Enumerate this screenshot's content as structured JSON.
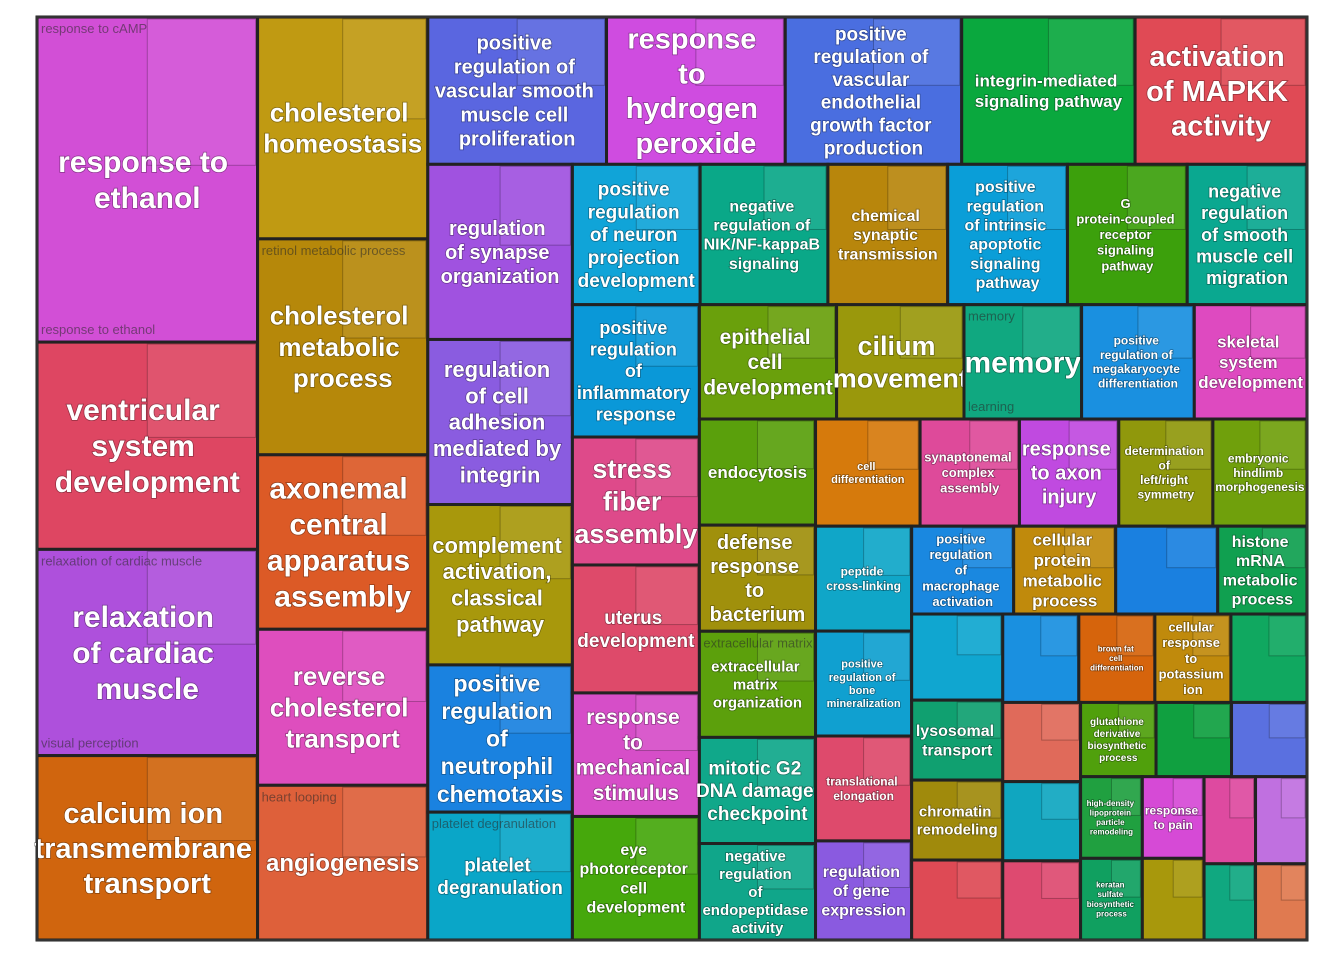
{
  "chart_data": {
    "type": "treemap",
    "groups": [
      {
        "label": "response to ethanol",
        "value": 640,
        "color": "#d24fd6",
        "minor": [
          "response to cAMP",
          "response to ethanol"
        ]
      },
      {
        "label": "ventricular system development",
        "value": 408,
        "color": "#de4662"
      },
      {
        "label": "relaxation of cardiac muscle",
        "value": 406,
        "color": "#ae50dc",
        "minor": [
          "relaxation of cardiac muscle",
          "visual perception"
        ]
      },
      {
        "label": "calcium ion transmembrane transport",
        "value": 363,
        "color": "#d0650e"
      },
      {
        "label": "cholesterol homeostasis",
        "value": 337,
        "color": "#c09a12"
      },
      {
        "label": "cholesterol metabolic process",
        "value": 328,
        "color": "#b6880a",
        "minor": [
          "retinol metabolic process"
        ]
      },
      {
        "label": "axonemal central apparatus assembly",
        "value": 265,
        "color": "#dc5a26"
      },
      {
        "label": "reverse cholesterol transport",
        "value": 237,
        "color": "#de4ebe"
      },
      {
        "label": "angiogenesis",
        "value": 235,
        "color": "#de603a",
        "minor": [
          "heart looping"
        ]
      },
      {
        "label": "positive regulation of vascular smooth muscle cell proliferation",
        "value": 235,
        "color": "#5a66e0"
      },
      {
        "label": "response to hydrogen peroxide",
        "value": 235,
        "color": "#cf4ce0"
      },
      {
        "label": "positive regulation of vascular endothelial growth factor production",
        "value": 232,
        "color": "#4a6ee0"
      },
      {
        "label": "integrin-mediated signaling pathway",
        "value": 228,
        "color": "#0aa83e"
      },
      {
        "label": "activation of MAPKK activity",
        "value": 226,
        "color": "#e04a55"
      },
      {
        "label": "regulation of synapse organization",
        "value": 226,
        "color": "#a052e0"
      },
      {
        "label": "regulation of cell adhesion mediated by integrin",
        "value": 213,
        "color": "#8a5ce0"
      },
      {
        "label": "complement activation, classical pathway",
        "value": 207,
        "color": "#a8980c"
      },
      {
        "label": "positive regulation of neutrophil chemotaxis",
        "value": 190,
        "color": "#1a82e0"
      },
      {
        "label": "platelet degranulation",
        "value": 165,
        "color": "#0aa6c8",
        "minor": [
          "platelet degranulation"
        ]
      },
      {
        "label": "positive regulation of neuron projection development",
        "value": 160,
        "color": "#10a4d8"
      },
      {
        "label": "negative regulation of NIK/NF-kappaB signaling",
        "value": 160,
        "color": "#0aa888"
      },
      {
        "label": "chemical synaptic transmission",
        "value": 150,
        "color": "#b8860c"
      },
      {
        "label": "positive regulation of intrinsic apoptotic signaling pathway",
        "value": 150,
        "color": "#0a9ed8"
      },
      {
        "label": "G protein-coupled receptor signaling pathway",
        "value": 150,
        "color": "#3ca00c"
      },
      {
        "label": "negative regulation of smooth muscle cell migration",
        "value": 150,
        "color": "#0aa890"
      },
      {
        "label": "positive regulation of inflammatory response",
        "value": 150,
        "color": "#0a98d8"
      },
      {
        "label": "stress fiber assembly",
        "value": 145,
        "color": "#de4a8a"
      },
      {
        "label": "uterus development",
        "value": 145,
        "color": "#de4a6a"
      },
      {
        "label": "response to mechanical stimulus",
        "value": 140,
        "color": "#d64ec8"
      },
      {
        "label": "eye photoreceptor cell development",
        "value": 140,
        "color": "#46a80c"
      },
      {
        "label": "epithelial cell development",
        "value": 140,
        "color": "#6aa00c"
      },
      {
        "label": "cilium movement",
        "value": 130,
        "color": "#9a980c"
      },
      {
        "label": "memory",
        "value": 120,
        "color": "#10a880",
        "minor": [
          "memory",
          "learning"
        ]
      },
      {
        "label": "positive regulation of megakaryocyte differentiation",
        "value": 115,
        "color": "#1a90e0"
      },
      {
        "label": "skeletal system development",
        "value": 115,
        "color": "#de4ac0"
      },
      {
        "label": "endocytosis",
        "value": 110,
        "color": "#5aa00c"
      },
      {
        "label": "defense response to bacterium",
        "value": 110,
        "color": "#a0900c"
      },
      {
        "label": "extracellular matrix organization",
        "value": 110,
        "color": "#5ca00c",
        "minor": [
          "extracellular matrix organization"
        ]
      },
      {
        "label": "mitotic G2 DNA damage checkpoint",
        "value": 110,
        "color": "#10a88a"
      },
      {
        "label": "negative regulation of endopeptidase activity",
        "value": 100,
        "color": "#10a68a"
      },
      {
        "label": "cell differentiation",
        "value": 100,
        "color": "#d67a0c"
      },
      {
        "label": "synaptonemal complex assembly",
        "value": 95,
        "color": "#de4a9a"
      },
      {
        "label": "response to axon injury",
        "value": 95,
        "color": "#c04ae0"
      },
      {
        "label": "determination of left/right symmetry",
        "value": 90,
        "color": "#90980c"
      },
      {
        "label": "embryonic hindlimb morphogenesis",
        "value": 90,
        "color": "#70a00c"
      },
      {
        "label": "peptide cross-linking",
        "value": 90,
        "color": "#10a6c8"
      },
      {
        "label": "positive regulation of bone mineralization",
        "value": 90,
        "color": "#10a0d0"
      },
      {
        "label": "translational elongation",
        "value": 90,
        "color": "#de4a6c"
      },
      {
        "label": "regulation of gene expression",
        "value": 85,
        "color": "#8a5ae0"
      },
      {
        "label": "positive regulation of macrophage activation",
        "value": 80,
        "color": "#1a88e0"
      },
      {
        "label": "cellular protein metabolic process",
        "value": 80,
        "color": "#c08a0c"
      },
      {
        "label": null,
        "value": 80,
        "color": "#1a80e0"
      },
      {
        "label": "histone mRNA metabolic process",
        "value": 70,
        "color": "#10a050"
      },
      {
        "label": null,
        "value": 70,
        "color": "#10a6d0"
      },
      {
        "label": "lysosomal transport",
        "value": 65,
        "color": "#10a070"
      },
      {
        "label": "chromatin remodeling",
        "value": 65,
        "color": "#a08a0c"
      },
      {
        "label": null,
        "value": 65,
        "color": "#de4a55"
      },
      {
        "label": null,
        "value": 60,
        "color": "#1a90e0"
      },
      {
        "label": "brown fat cell differentiation",
        "value": 60,
        "color": "#d6640c"
      },
      {
        "label": "cellular response to potassium ion",
        "value": 60,
        "color": "#c08a0c"
      },
      {
        "label": null,
        "value": 60,
        "color": "#10a860"
      },
      {
        "label": null,
        "value": 55,
        "color": "#e06a5a"
      },
      {
        "label": null,
        "value": 55,
        "color": "#10a6c0"
      },
      {
        "label": null,
        "value": 55,
        "color": "#de4a70"
      },
      {
        "label": "glutathione derivative biosynthetic process",
        "value": 50,
        "color": "#50a00c"
      },
      {
        "label": null,
        "value": 50,
        "color": "#10a040"
      },
      {
        "label": null,
        "value": 50,
        "color": "#5a70e0"
      },
      {
        "label": "high-density lipoprotein particle remodeling",
        "value": 45,
        "color": "#20a040"
      },
      {
        "label": "keratan sulfate biosynthetic process",
        "value": 45,
        "color": "#10a060"
      },
      {
        "label": "response to pain",
        "value": 45,
        "color": "#d64ad6"
      },
      {
        "label": null,
        "value": 45,
        "color": "#a8980c"
      },
      {
        "label": null,
        "value": 40,
        "color": "#de4aa0"
      },
      {
        "label": null,
        "value": 40,
        "color": "#c070e0"
      },
      {
        "label": null,
        "value": 35,
        "color": "#10a880"
      },
      {
        "label": null,
        "value": 35,
        "color": "#e07a50"
      }
    ]
  }
}
